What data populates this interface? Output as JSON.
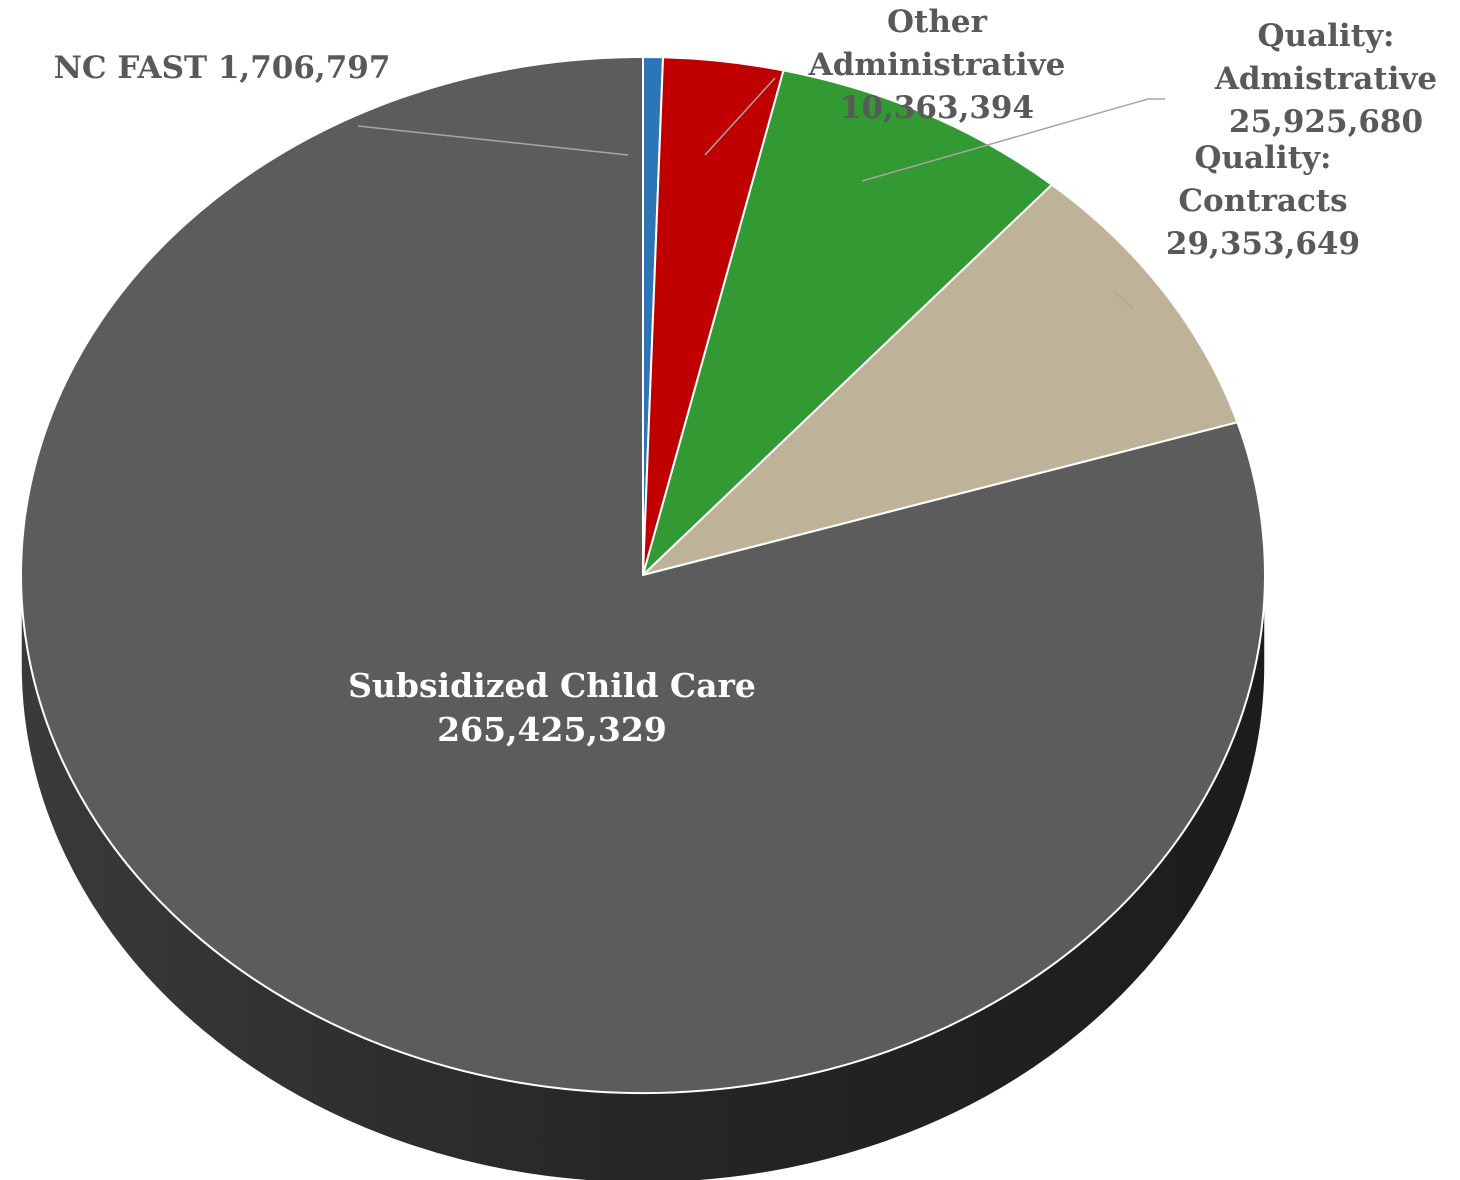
{
  "chart_data": {
    "type": "pie",
    "style": "3d",
    "categories": [
      "NC FAST",
      "Other Administrative",
      "Quality: Admistrative",
      "Quality: Contracts",
      "Subsidized Child Care"
    ],
    "values": [
      1706797,
      10363394,
      25925680,
      29353649,
      265425329
    ],
    "value_labels": [
      "1,706,797",
      "10,363,394",
      "25,925,680",
      "29,353,649",
      "265,425,329"
    ],
    "colors": [
      "#2e75b6",
      "#c00000",
      "#339933",
      "#beb399",
      "#5c5c5c"
    ],
    "label_lines": [
      [
        "NC FAST 1,706,797"
      ],
      [
        "Other",
        "Administrative",
        "10,363,394"
      ],
      [
        "Quality:",
        "Admistrative",
        "25,925,680"
      ],
      [
        "Quality:",
        "Contracts",
        "29,353,649"
      ],
      [
        "Subsidized Child Care",
        "265,425,329"
      ]
    ],
    "start_angle": "12 o'clock",
    "direction": "clockwise",
    "legend": "none"
  }
}
